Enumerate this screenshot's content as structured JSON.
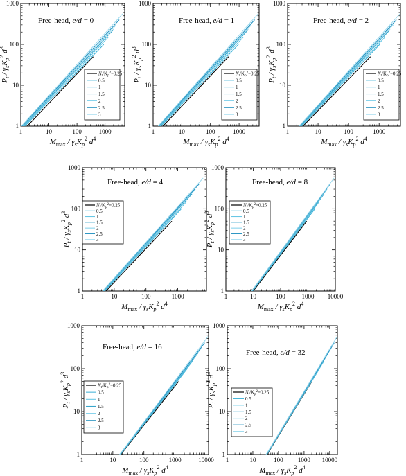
{
  "colors": {
    "axis": "#000000",
    "series": [
      "#000000",
      "#3ab0d6",
      "#5cc3e3",
      "#2a9fc8",
      "#7fd0ea",
      "#1f8fbf",
      "#9ad9ee"
    ]
  },
  "axis_labels": {
    "x_main": "M",
    "x_sub": "max",
    "x_rest": " / γ",
    "x_sub2": "s",
    "x_k": "K",
    "x_p": "p",
    "x_sup2": "2",
    "x_d": " d",
    "x_sup4": "4",
    "y_main": "P",
    "y_sub": "t",
    "y_rest": " / γ",
    "y_sub2": "s",
    "y_k": "K",
    "y_p": "p",
    "y_sup2": "2",
    "y_d": " d",
    "y_sup3": "3"
  },
  "legend": {
    "title_n": "N",
    "title_t": "t",
    "title_rest": "/K",
    "title_p": "p",
    "title_sup": "2",
    "title_val": "=0.25",
    "entries": [
      "0.5",
      "1",
      "1.5",
      "2",
      "2.5",
      "3"
    ]
  },
  "chart_data": [
    {
      "type": "line",
      "title_prefix": "Free-head, ",
      "title_ratio": "e/d",
      "title_value": " = 0",
      "xscale": "log",
      "yscale": "log",
      "xlim": [
        1,
        5000
      ],
      "ylim": [
        1,
        1000
      ],
      "xticks": [
        1,
        10,
        100,
        1000
      ],
      "yticks": [
        1,
        10,
        100,
        1000
      ],
      "series": [
        {
          "name": "0.25",
          "x": [
            1.7,
            380
          ],
          "y": [
            1,
            50
          ]
        },
        {
          "name": "0.5",
          "x": [
            1.4,
            900
          ],
          "y": [
            1,
            100
          ]
        },
        {
          "name": "1",
          "x": [
            1.3,
            1300
          ],
          "y": [
            1,
            150
          ]
        },
        {
          "name": "1.5",
          "x": [
            1.2,
            2000
          ],
          "y": [
            1,
            230
          ]
        },
        {
          "name": "2",
          "x": [
            1.15,
            2500
          ],
          "y": [
            1,
            300
          ]
        },
        {
          "name": "2.5",
          "x": [
            1.1,
            3200
          ],
          "y": [
            1,
            400
          ]
        },
        {
          "name": "3",
          "x": [
            1.05,
            4200
          ],
          "y": [
            1,
            560
          ]
        }
      ]
    },
    {
      "type": "line",
      "title_prefix": "Free-head, ",
      "title_ratio": "e/d",
      "title_value": " = 1",
      "xscale": "log",
      "yscale": "log",
      "xlim": [
        1,
        5000
      ],
      "ylim": [
        1,
        1000
      ],
      "xticks": [
        1,
        10,
        100,
        1000
      ],
      "yticks": [
        1,
        10,
        100,
        1000
      ],
      "series": [
        {
          "name": "0.25",
          "x": [
            2.2,
            430
          ],
          "y": [
            1,
            50
          ]
        },
        {
          "name": "0.5",
          "x": [
            1.9,
            950
          ],
          "y": [
            1,
            100
          ]
        },
        {
          "name": "1",
          "x": [
            1.75,
            1400
          ],
          "y": [
            1,
            150
          ]
        },
        {
          "name": "1.5",
          "x": [
            1.65,
            2100
          ],
          "y": [
            1,
            230
          ]
        },
        {
          "name": "2",
          "x": [
            1.6,
            2700
          ],
          "y": [
            1,
            300
          ]
        },
        {
          "name": "2.5",
          "x": [
            1.55,
            3500
          ],
          "y": [
            1,
            400
          ]
        },
        {
          "name": "3",
          "x": [
            1.5,
            4600
          ],
          "y": [
            1,
            560
          ]
        }
      ]
    },
    {
      "type": "line",
      "title_prefix": "Free-head, ",
      "title_ratio": "e/d",
      "title_value": " = 2",
      "xscale": "log",
      "yscale": "log",
      "xlim": [
        1,
        5000
      ],
      "ylim": [
        1,
        1000
      ],
      "xticks": [
        1,
        10,
        100,
        1000
      ],
      "yticks": [
        1,
        10,
        100,
        1000
      ],
      "series": [
        {
          "name": "0.25",
          "x": [
            3.2,
            520
          ],
          "y": [
            1,
            50
          ]
        },
        {
          "name": "0.5",
          "x": [
            2.9,
            1050
          ],
          "y": [
            1,
            100
          ]
        },
        {
          "name": "1",
          "x": [
            2.7,
            1550
          ],
          "y": [
            1,
            150
          ]
        },
        {
          "name": "1.5",
          "x": [
            2.6,
            2300
          ],
          "y": [
            1,
            230
          ]
        },
        {
          "name": "2",
          "x": [
            2.5,
            2900
          ],
          "y": [
            1,
            300
          ]
        },
        {
          "name": "2.5",
          "x": [
            2.45,
            3700
          ],
          "y": [
            1,
            400
          ]
        },
        {
          "name": "3",
          "x": [
            2.4,
            4800
          ],
          "y": [
            1,
            560
          ]
        }
      ]
    },
    {
      "type": "line",
      "title_prefix": "Free-head, ",
      "title_ratio": "e/d",
      "title_value": " = 4",
      "xscale": "log",
      "yscale": "log",
      "xlim": [
        1,
        8000
      ],
      "ylim": [
        1,
        1000
      ],
      "xticks": [
        1,
        10,
        100,
        1000
      ],
      "yticks": [
        1,
        10,
        100,
        1000
      ],
      "series": [
        {
          "name": "0.25",
          "x": [
            5.5,
            650
          ],
          "y": [
            1,
            50
          ]
        },
        {
          "name": "0.5",
          "x": [
            5.0,
            1300
          ],
          "y": [
            1,
            100
          ]
        },
        {
          "name": "1",
          "x": [
            4.8,
            1900
          ],
          "y": [
            1,
            150
          ]
        },
        {
          "name": "1.5",
          "x": [
            4.6,
            2800
          ],
          "y": [
            1,
            230
          ]
        },
        {
          "name": "2",
          "x": [
            4.5,
            3600
          ],
          "y": [
            1,
            300
          ]
        },
        {
          "name": "2.5",
          "x": [
            4.4,
            4700
          ],
          "y": [
            1,
            400
          ]
        },
        {
          "name": "3",
          "x": [
            4.3,
            6300
          ],
          "y": [
            1,
            560
          ]
        }
      ]
    },
    {
      "type": "line",
      "title_prefix": "Free-head, ",
      "title_ratio": "e/d",
      "title_value": " = 8",
      "xscale": "log",
      "yscale": "log",
      "xlim": [
        1,
        10000
      ],
      "ylim": [
        1,
        1000
      ],
      "xticks": [
        1,
        10,
        100,
        1000,
        10000
      ],
      "yticks": [
        1,
        10,
        100,
        1000
      ],
      "series": [
        {
          "name": "0.25",
          "x": [
            10,
            900
          ],
          "y": [
            1,
            50
          ]
        },
        {
          "name": "0.5",
          "x": [
            9.5,
            1800
          ],
          "y": [
            1,
            100
          ]
        },
        {
          "name": "1",
          "x": [
            9.2,
            2600
          ],
          "y": [
            1,
            150
          ]
        },
        {
          "name": "1.5",
          "x": [
            9.0,
            3900
          ],
          "y": [
            1,
            230
          ]
        },
        {
          "name": "2",
          "x": [
            8.9,
            5000
          ],
          "y": [
            1,
            300
          ]
        },
        {
          "name": "2.5",
          "x": [
            8.8,
            6500
          ],
          "y": [
            1,
            400
          ]
        },
        {
          "name": "3",
          "x": [
            8.7,
            9000
          ],
          "y": [
            1,
            560
          ]
        }
      ]
    },
    {
      "type": "line",
      "title_prefix": "Free-head, ",
      "title_ratio": "e/d",
      "title_value": " = 16",
      "xscale": "log",
      "yscale": "log",
      "xlim": [
        1,
        12000
      ],
      "ylim": [
        1,
        1000
      ],
      "xticks": [
        1,
        10,
        100,
        1000,
        10000
      ],
      "yticks": [
        1,
        10,
        100,
        1000
      ],
      "series": [
        {
          "name": "0.25",
          "x": [
            18,
            1300
          ],
          "y": [
            1,
            50
          ]
        },
        {
          "name": "0.5",
          "x": [
            17.5,
            2500
          ],
          "y": [
            1,
            100
          ]
        },
        {
          "name": "1",
          "x": [
            17.2,
            3700
          ],
          "y": [
            1,
            150
          ]
        },
        {
          "name": "1.5",
          "x": [
            17,
            5500
          ],
          "y": [
            1,
            230
          ]
        },
        {
          "name": "2",
          "x": [
            16.8,
            7000
          ],
          "y": [
            1,
            300
          ]
        },
        {
          "name": "2.5",
          "x": [
            16.6,
            9000
          ],
          "y": [
            1,
            400
          ]
        },
        {
          "name": "3",
          "x": [
            16.5,
            11500
          ],
          "y": [
            1,
            560
          ]
        }
      ]
    },
    {
      "type": "line",
      "title_prefix": "Free-head, ",
      "title_ratio": "e/d",
      "title_value": " = 32",
      "xscale": "log",
      "yscale": "log",
      "xlim": [
        1,
        20000
      ],
      "ylim": [
        1,
        1000
      ],
      "xticks": [
        1,
        10,
        100,
        1000,
        10000
      ],
      "yticks": [
        1,
        10,
        100,
        1000
      ],
      "series": [
        {
          "name": "0.25",
          "x": [
            36,
            2000
          ],
          "y": [
            1,
            50
          ]
        },
        {
          "name": "0.5",
          "x": [
            35,
            4000
          ],
          "y": [
            1,
            100
          ]
        },
        {
          "name": "1",
          "x": [
            34.5,
            6000
          ],
          "y": [
            1,
            150
          ]
        },
        {
          "name": "1.5",
          "x": [
            34,
            8800
          ],
          "y": [
            1,
            230
          ]
        },
        {
          "name": "2",
          "x": [
            33.5,
            11500
          ],
          "y": [
            1,
            300
          ]
        },
        {
          "name": "2.5",
          "x": [
            33.2,
            15000
          ],
          "y": [
            1,
            400
          ]
        },
        {
          "name": "3",
          "x": [
            33,
            19500
          ],
          "y": [
            1,
            560
          ]
        }
      ]
    }
  ]
}
